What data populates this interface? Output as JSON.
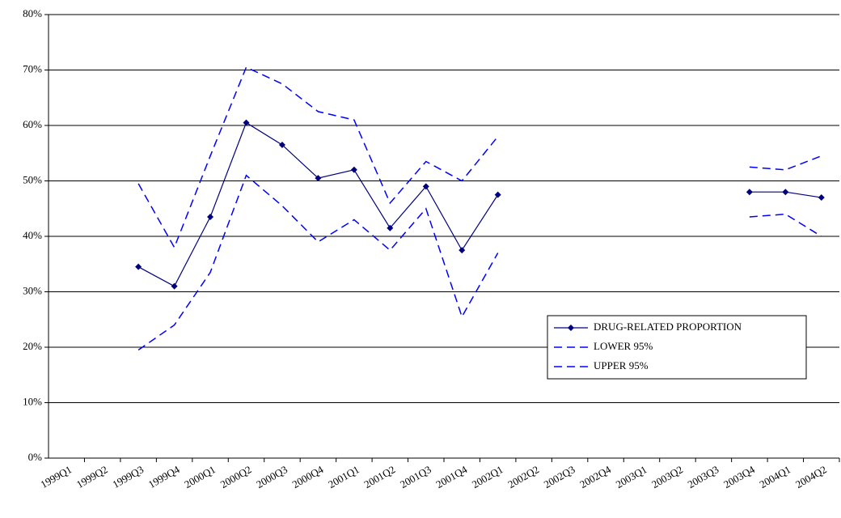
{
  "chart_data": {
    "type": "line",
    "categories": [
      "1999Q1",
      "1999Q2",
      "1999Q3",
      "1999Q4",
      "2000Q1",
      "2000Q2",
      "2000Q3",
      "2000Q4",
      "2001Q1",
      "2001Q2",
      "2001Q3",
      "2001Q4",
      "2002Q1",
      "2002Q2",
      "2002Q3",
      "2002Q4",
      "2003Q1",
      "2003Q2",
      "2003Q3",
      "2003Q4",
      "2004Q1",
      "2004Q2"
    ],
    "series": [
      {
        "name": "DRUG-RELATED PROPORTION",
        "color": "#000080",
        "dash": false,
        "marker": true,
        "values": [
          null,
          null,
          34.5,
          31,
          43.5,
          60.5,
          56.5,
          50.5,
          52,
          41.5,
          49,
          37.5,
          47.5,
          null,
          null,
          null,
          null,
          null,
          null,
          48,
          48,
          47
        ]
      },
      {
        "name": "LOWER 95%",
        "color": "#0000ff",
        "dash": true,
        "marker": false,
        "values": [
          null,
          null,
          19.5,
          24,
          33.5,
          51,
          45.5,
          39,
          43,
          37.5,
          45,
          25.5,
          37,
          null,
          null,
          null,
          null,
          null,
          null,
          43.5,
          44,
          40
        ]
      },
      {
        "name": "UPPER 95%",
        "color": "#0000ff",
        "dash": true,
        "marker": false,
        "values": [
          null,
          null,
          49.5,
          38,
          54.5,
          70.5,
          67.5,
          62.5,
          61,
          46,
          53.5,
          50,
          58,
          null,
          null,
          null,
          null,
          null,
          null,
          52.5,
          52,
          54.5
        ]
      }
    ],
    "ylim": [
      0,
      80
    ],
    "yticks": [
      {
        "value": 0,
        "label": "0%"
      },
      {
        "value": 10,
        "label": "10%"
      },
      {
        "value": 20,
        "label": "20%"
      },
      {
        "value": 30,
        "label": "30%"
      },
      {
        "value": 40,
        "label": "40%"
      },
      {
        "value": 50,
        "label": "50%"
      },
      {
        "value": 60,
        "label": "60%"
      },
      {
        "value": 70,
        "label": "70%"
      },
      {
        "value": 80,
        "label": "80%"
      }
    ],
    "grid": true
  }
}
